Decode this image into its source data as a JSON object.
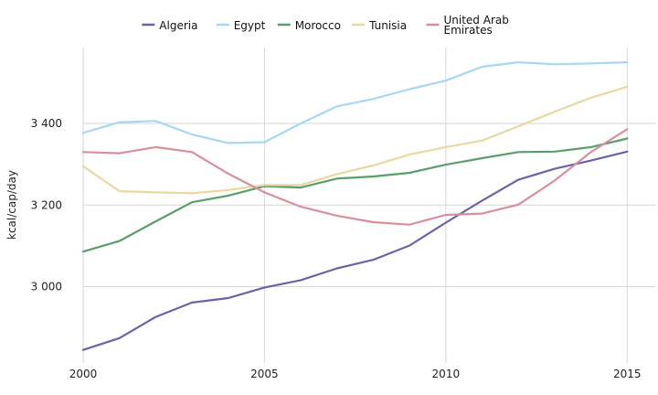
{
  "chart_data": {
    "type": "line",
    "ylabel": "kcal/cap/day",
    "xlabel": "",
    "x": [
      2000,
      2001,
      2002,
      2003,
      2004,
      2005,
      2006,
      2007,
      2008,
      2009,
      2010,
      2011,
      2012,
      2013,
      2014,
      2015
    ],
    "xlim": [
      2000,
      2015.8
    ],
    "ylim": [
      2813,
      3586
    ],
    "x_ticks": [
      2000,
      2005,
      2010,
      2015
    ],
    "x_tick_labels": [
      "2000",
      "2005",
      "2010",
      "2015"
    ],
    "y_ticks": [
      3000,
      3200,
      3400
    ],
    "y_tick_labels": [
      "3 000",
      "3 200",
      "3 400"
    ],
    "grid": true,
    "legend_position": "top",
    "series": [
      {
        "name": "Algeria",
        "color": "#6b63a8",
        "values": [
          2845,
          2874,
          2926,
          2961,
          2972,
          2998,
          3016,
          3045,
          3066,
          3101,
          3157,
          3211,
          3262,
          3289,
          3309,
          3331
        ]
      },
      {
        "name": "Egypt",
        "color": "#a8d8ee",
        "values": [
          3377,
          3403,
          3406,
          3373,
          3352,
          3354,
          3400,
          3442,
          3460,
          3484,
          3505,
          3539,
          3550,
          3545,
          3547,
          3550
        ]
      },
      {
        "name": "Morocco",
        "color": "#5a9e6a",
        "values": [
          3086,
          3112,
          3160,
          3207,
          3223,
          3246,
          3243,
          3265,
          3270,
          3279,
          3299,
          3315,
          3330,
          3331,
          3342,
          3363
        ]
      },
      {
        "name": "Tunisia",
        "color": "#e8d9a0",
        "values": [
          3295,
          3234,
          3231,
          3229,
          3237,
          3249,
          3249,
          3276,
          3297,
          3324,
          3342,
          3358,
          3393,
          3429,
          3463,
          3490
        ]
      },
      {
        "name": "United Arab\nEmirates",
        "color": "#d98f9c",
        "values": [
          3330,
          3327,
          3342,
          3330,
          3277,
          3231,
          3196,
          3174,
          3158,
          3152,
          3176,
          3179,
          3201,
          3260,
          3330,
          3386
        ]
      }
    ]
  }
}
